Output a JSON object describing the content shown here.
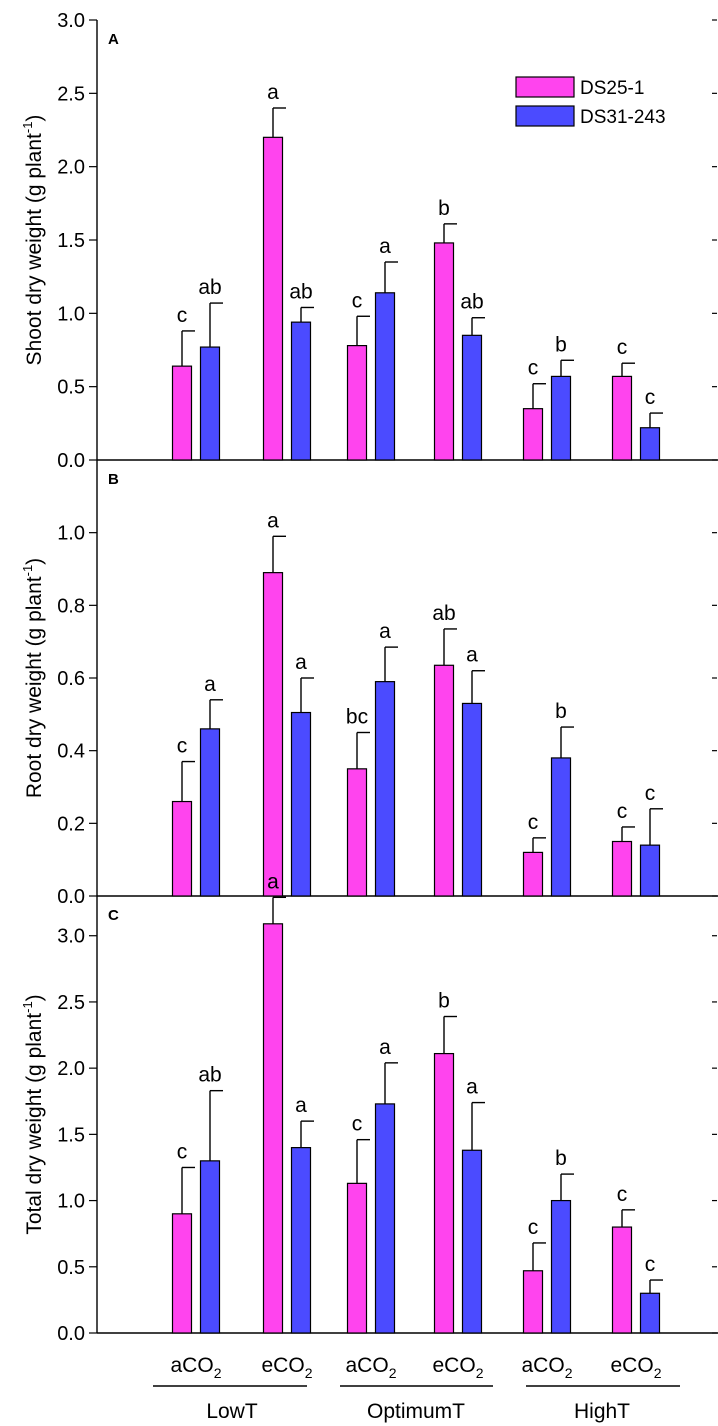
{
  "colors": {
    "DS25-1": "#ff44ee",
    "DS31-243": "#4b4bff"
  },
  "legend": [
    {
      "name": "DS25-1"
    },
    {
      "name": "DS31-243"
    }
  ],
  "groups": [
    {
      "treatment": "aCO",
      "temp": "LowT"
    },
    {
      "treatment": "eCO",
      "temp": "LowT"
    },
    {
      "treatment": "aCO",
      "temp": "OptimumT"
    },
    {
      "treatment": "eCO",
      "temp": "OptimumT"
    },
    {
      "treatment": "aCO",
      "temp": "HighT"
    },
    {
      "treatment": "eCO",
      "temp": "HighT"
    }
  ],
  "co2_subscript": "2",
  "temperatures": [
    "LowT",
    "OptimumT",
    "HighT"
  ],
  "chart_data": [
    {
      "type": "bar",
      "panel": "A",
      "ylabel": "Shoot dry weight (g plant",
      "ylabel_sup": "-1",
      "ylabel_end": ")",
      "ylim": [
        0,
        3.0
      ],
      "yticks": [
        0.0,
        0.5,
        1.0,
        1.5,
        2.0,
        2.5,
        3.0
      ],
      "ytick_labels": [
        "0.0",
        "0.5",
        "1.0",
        "1.5",
        "2.0",
        "2.5",
        "3.0"
      ],
      "categories": [
        "aCO2 LowT",
        "eCO2 LowT",
        "aCO2 OptimumT",
        "eCO2 OptimumT",
        "aCO2 HighT",
        "eCO2 HighT"
      ],
      "series": [
        {
          "name": "DS25-1",
          "values": [
            0.64,
            2.2,
            0.78,
            1.48,
            0.35,
            0.57
          ],
          "errors": [
            0.24,
            0.2,
            0.2,
            0.13,
            0.17,
            0.09
          ],
          "letters": [
            "c",
            "a",
            "c",
            "b",
            "c",
            "c"
          ]
        },
        {
          "name": "DS31-243",
          "values": [
            0.77,
            0.94,
            1.14,
            0.85,
            0.57,
            0.22
          ],
          "errors": [
            0.3,
            0.1,
            0.21,
            0.12,
            0.11,
            0.1
          ],
          "letters": [
            "ab",
            "ab",
            "a",
            "ab",
            "b",
            "c"
          ]
        }
      ]
    },
    {
      "type": "bar",
      "panel": "B",
      "ylabel": "Root dry weight (g plant",
      "ylabel_sup": "-1",
      "ylabel_end": ")",
      "ylim": [
        0,
        1.2
      ],
      "yticks": [
        0.0,
        0.2,
        0.4,
        0.6,
        0.8,
        1.0
      ],
      "ytick_labels": [
        "0.0",
        "0.2",
        "0.4",
        "0.6",
        "0.8",
        "1.0"
      ],
      "categories": [
        "aCO2 LowT",
        "eCO2 LowT",
        "aCO2 OptimumT",
        "eCO2 OptimumT",
        "aCO2 HighT",
        "eCO2 HighT"
      ],
      "series": [
        {
          "name": "DS25-1",
          "values": [
            0.26,
            0.89,
            0.35,
            0.635,
            0.12,
            0.15
          ],
          "errors": [
            0.11,
            0.1,
            0.1,
            0.1,
            0.04,
            0.04
          ],
          "letters": [
            "c",
            "a",
            "bc",
            "ab",
            "c",
            "c"
          ]
        },
        {
          "name": "DS31-243",
          "values": [
            0.46,
            0.505,
            0.59,
            0.53,
            0.38,
            0.14
          ],
          "errors": [
            0.08,
            0.095,
            0.095,
            0.09,
            0.085,
            0.1
          ],
          "letters": [
            "a",
            "a",
            "a",
            "a",
            "b",
            "c"
          ]
        }
      ]
    },
    {
      "type": "bar",
      "panel": "C",
      "ylabel": "Total dry weight (g plant",
      "ylabel_sup": "-1",
      "ylabel_end": ")",
      "ylim": [
        0,
        3.3
      ],
      "yticks": [
        0.0,
        0.5,
        1.0,
        1.5,
        2.0,
        2.5,
        3.0
      ],
      "ytick_labels": [
        "0.0",
        "0.5",
        "1.0",
        "1.5",
        "2.0",
        "2.5",
        "3.0"
      ],
      "categories": [
        "aCO2 LowT",
        "eCO2 LowT",
        "aCO2 OptimumT",
        "eCO2 OptimumT",
        "aCO2 HighT",
        "eCO2 HighT"
      ],
      "series": [
        {
          "name": "DS25-1",
          "values": [
            0.9,
            3.09,
            1.13,
            2.11,
            0.47,
            0.8
          ],
          "errors": [
            0.35,
            0.2,
            0.33,
            0.28,
            0.21,
            0.13
          ],
          "letters": [
            "c",
            "a",
            "c",
            "b",
            "c",
            "c"
          ]
        },
        {
          "name": "DS31-243",
          "values": [
            1.3,
            1.4,
            1.73,
            1.38,
            1.0,
            0.3
          ],
          "errors": [
            0.53,
            0.2,
            0.31,
            0.36,
            0.2,
            0.1
          ],
          "letters": [
            "ab",
            "a",
            "a",
            "a",
            "b",
            "c"
          ]
        }
      ]
    }
  ]
}
